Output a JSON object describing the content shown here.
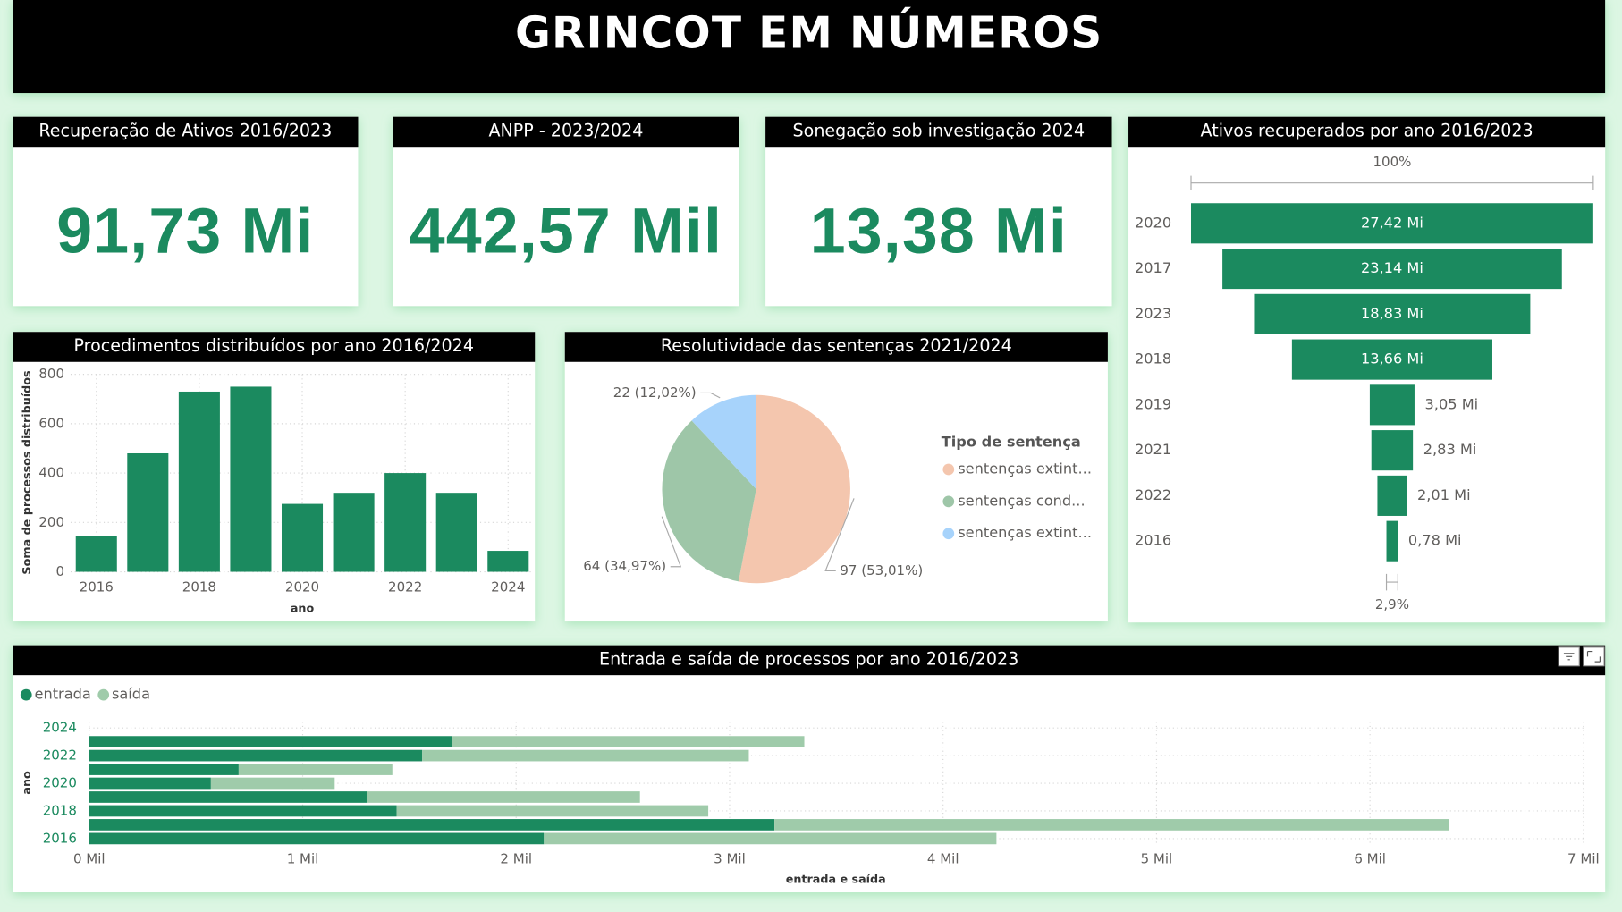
{
  "header": {
    "title": "GRINCOT EM NÚMEROS"
  },
  "cards": [
    {
      "title": "Recuperação de Ativos 2016/2023",
      "value": "91,73 Mi"
    },
    {
      "title": "ANPP - 2023/2024",
      "value": "442,57 Mil"
    },
    {
      "title": "Sonegação sob investigação 2024",
      "value": "13,38 Mi"
    }
  ],
  "chart_data": [
    {
      "type": "bar",
      "title": "Procedimentos distribuídos por ano 2016/2024",
      "x": [
        2016,
        2017,
        2018,
        2019,
        2020,
        2021,
        2022,
        2023,
        2024
      ],
      "values": [
        145,
        480,
        730,
        750,
        275,
        320,
        400,
        320,
        85
      ],
      "color": "#1b8a5f",
      "xlim": [
        2015.5,
        2024.5
      ],
      "xticks": [
        2016,
        2018,
        2020,
        2022,
        2024
      ],
      "ylim": [
        0,
        800
      ],
      "yticks": [
        0,
        200,
        400,
        600,
        800
      ],
      "xlabel": "ano",
      "ylabel": "Soma de processos distribuídos",
      "grid": true
    },
    {
      "type": "pie",
      "title": "Resolutividade das sentenças 2021/2024",
      "categories": [
        "sentenças extint...",
        "sentenças cond...",
        "sentenças extint..."
      ],
      "values": [
        97,
        64,
        22
      ],
      "value_labels": [
        "97 (53,01%)",
        "64 (34,97%)",
        "22 (12,02%)"
      ],
      "colors": [
        "#f4c6ae",
        "#9ec6a8",
        "#a7d3fb"
      ],
      "legend_title": "Tipo de sentença",
      "legend": "right"
    },
    {
      "type": "funnel",
      "title": "Ativos recuperados por ano 2016/2023",
      "categories": [
        "2020",
        "2017",
        "2023",
        "2018",
        "2019",
        "2021",
        "2022",
        "2016"
      ],
      "values": [
        27.42,
        23.14,
        18.83,
        13.66,
        3.05,
        2.83,
        2.01,
        0.78
      ],
      "value_labels": [
        "27,42 Mi",
        "23,14 Mi",
        "18,83 Mi",
        "13,66 Mi",
        "3,05 Mi",
        "2,83 Mi",
        "2,01 Mi",
        "0,78 Mi"
      ],
      "color": "#1b8a5f",
      "top_label": "100%",
      "bottom_label": "2,9%"
    },
    {
      "type": "stacked_barh",
      "title": "Entrada e saída de processos por ano 2016/2023",
      "categories": [
        "2024",
        null,
        "2022",
        null,
        "2020",
        null,
        "2018",
        null,
        "2016"
      ],
      "series": [
        {
          "name": "entrada",
          "color": "#1b8a5f",
          "values": [
            null,
            1.7,
            1.56,
            0.7,
            0.57,
            1.3,
            1.44,
            3.21,
            2.13
          ]
        },
        {
          "name": "saída",
          "color": "#9fcbaa",
          "values": [
            null,
            1.65,
            1.53,
            0.72,
            0.58,
            1.28,
            1.46,
            3.16,
            2.12
          ]
        }
      ],
      "xlim": [
        0,
        7
      ],
      "xticks": [
        {
          "value": 0,
          "label": "0 Mil"
        },
        {
          "value": 1,
          "label": "1 Mil"
        },
        {
          "value": 2,
          "label": "2 Mil"
        },
        {
          "value": 3,
          "label": "3 Mil"
        },
        {
          "value": 4,
          "label": "4 Mil"
        },
        {
          "value": 5,
          "label": "5 Mil"
        },
        {
          "value": 6,
          "label": "6 Mil"
        },
        {
          "value": 7,
          "label": "7 Mil"
        }
      ],
      "xlabel": "entrada e saída",
      "ylabel": "ano",
      "legend": "top-left",
      "grid": true
    }
  ]
}
